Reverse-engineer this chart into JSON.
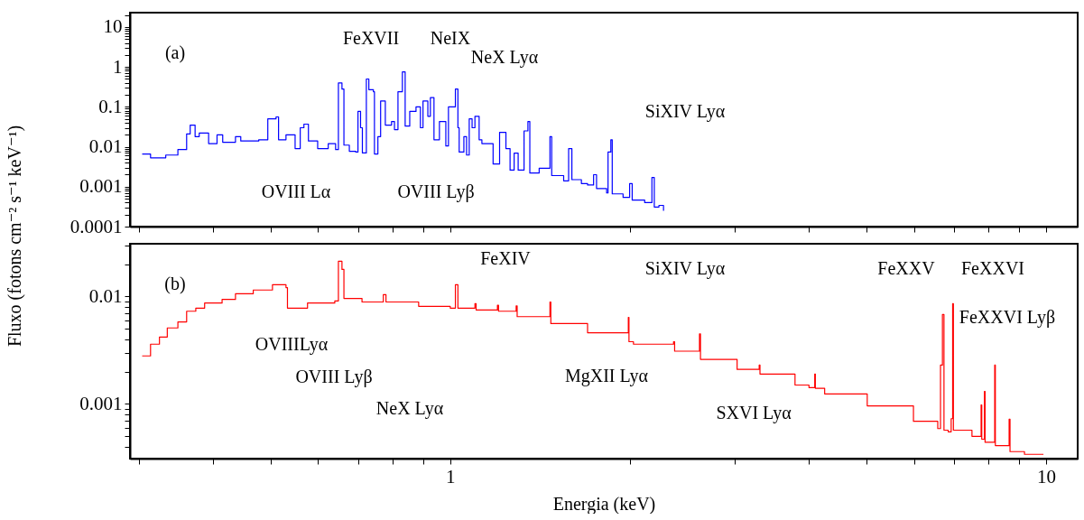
{
  "chart_data": [
    {
      "type": "step",
      "ylabel": "Fluxo (fotons cm⁻² s⁻¹ keV⁻¹)",
      "log": "xy",
      "tick_labels": "y",
      "xlim": [
        0.29,
        11.3
      ],
      "ylim": [
        0.0001,
        23
      ],
      "xticks": [
        {
          "value": 0.3,
          "label": null
        },
        {
          "value": 0.4,
          "label": null
        },
        {
          "value": 0.5,
          "label": null
        },
        {
          "value": 0.6,
          "label": null
        },
        {
          "value": 0.7,
          "label": null
        },
        {
          "value": 0.8,
          "label": null
        },
        {
          "value": 0.9,
          "label": null
        },
        {
          "value": 1,
          "label": null
        },
        {
          "value": 2,
          "label": null
        },
        {
          "value": 3,
          "label": null
        },
        {
          "value": 4,
          "label": null
        },
        {
          "value": 5,
          "label": null
        },
        {
          "value": 6,
          "label": null
        },
        {
          "value": 7,
          "label": null
        },
        {
          "value": 8,
          "label": null
        },
        {
          "value": 9,
          "label": null
        },
        {
          "value": 10,
          "label": null
        }
      ],
      "yticks": [
        0.0001,
        {
          "value": 0.0002,
          "label": null
        },
        {
          "value": 0.0003,
          "label": null
        },
        {
          "value": 0.0004,
          "label": null
        },
        {
          "value": 0.0005,
          "label": null
        },
        {
          "value": 0.0006,
          "label": null
        },
        {
          "value": 0.0007,
          "label": null
        },
        {
          "value": 0.0008,
          "label": null
        },
        {
          "value": 0.0009,
          "label": null
        },
        0.001,
        {
          "value": 0.002,
          "label": null
        },
        {
          "value": 0.003,
          "label": null
        },
        {
          "value": 0.004,
          "label": null
        },
        {
          "value": 0.005,
          "label": null
        },
        {
          "value": 0.006,
          "label": null
        },
        {
          "value": 0.007,
          "label": null
        },
        {
          "value": 0.008,
          "label": null
        },
        {
          "value": 0.009,
          "label": null
        },
        0.01,
        {
          "value": 0.02,
          "label": null
        },
        {
          "value": 0.03,
          "label": null
        },
        {
          "value": 0.04,
          "label": null
        },
        {
          "value": 0.05,
          "label": null
        },
        {
          "value": 0.06,
          "label": null
        },
        {
          "value": 0.07,
          "label": null
        },
        {
          "value": 0.08,
          "label": null
        },
        {
          "value": 0.09,
          "label": null
        },
        0.1,
        {
          "value": 0.2,
          "label": null
        },
        {
          "value": 0.3,
          "label": null
        },
        {
          "value": 0.4,
          "label": null
        },
        {
          "value": 0.5,
          "label": null
        },
        {
          "value": 0.6,
          "label": null
        },
        {
          "value": 0.7,
          "label": null
        },
        {
          "value": 0.8,
          "label": null
        },
        {
          "value": 0.9,
          "label": null
        },
        1,
        {
          "value": 2,
          "label": null
        },
        {
          "value": 3,
          "label": null
        },
        {
          "value": 4,
          "label": null
        },
        {
          "value": 5,
          "label": null
        },
        {
          "value": 6,
          "label": null
        },
        {
          "value": 7,
          "label": null
        },
        {
          "value": 8,
          "label": null
        },
        {
          "value": 9,
          "label": null
        },
        10,
        {
          "value": 20,
          "label": null
        }
      ],
      "series": [
        {
          "color": "#0000ff",
          "x": [
            0.304,
            0.314,
            0.333,
            0.349,
            0.361,
            0.366,
            0.373,
            0.379,
            0.393,
            0.406,
            0.415,
            0.436,
            0.445,
            0.477,
            0.494,
            0.51,
            0.515,
            0.53,
            0.549,
            0.56,
            0.568,
            0.578,
            0.599,
            0.624,
            0.642,
            0.649,
            0.658,
            0.663,
            0.677,
            0.694,
            0.7,
            0.707,
            0.712,
            0.723,
            0.73,
            0.743,
            0.746,
            0.756,
            0.764,
            0.778,
            0.797,
            0.806,
            0.817,
            0.831,
            0.84,
            0.855,
            0.876,
            0.891,
            0.9,
            0.917,
            0.926,
            0.939,
            0.959,
            0.983,
            0.993,
            1.01,
            1.02,
            1.03,
            1.035,
            1.054,
            1.065,
            1.076,
            1.088,
            1.1,
            1.118,
            1.13,
            1.18,
            1.21,
            1.24,
            1.26,
            1.28,
            1.3,
            1.33,
            1.35,
            1.36,
            1.41,
            1.47,
            1.48,
            1.55,
            1.58,
            1.6,
            1.66,
            1.7,
            1.74,
            1.76,
            1.83,
            1.84,
            1.86,
            1.87,
            1.95,
            2.0,
            2.02,
            2.12,
            2.18,
            2.2,
            2.24,
            2.28
          ],
          "values": [
            0.0066,
            0.0053,
            0.0062,
            0.0085,
            0.021,
            0.035,
            0.018,
            0.022,
            0.012,
            0.02,
            0.013,
            0.018,
            0.014,
            0.015,
            0.05,
            0.056,
            0.015,
            0.02,
            0.009,
            0.03,
            0.037,
            0.014,
            0.009,
            0.012,
            0.0085,
            0.4,
            0.28,
            0.011,
            0.0077,
            0.0074,
            0.077,
            0.03,
            0.007,
            0.5,
            0.27,
            0.24,
            0.0066,
            0.018,
            0.14,
            0.035,
            0.043,
            0.027,
            0.24,
            0.75,
            0.033,
            0.077,
            0.1,
            0.03,
            0.14,
            0.058,
            0.17,
            0.015,
            0.043,
            0.0105,
            0.1,
            0.1,
            0.28,
            0.03,
            0.0074,
            0.018,
            0.0062,
            0.05,
            0.03,
            0.058,
            0.015,
            0.012,
            0.0037,
            0.023,
            0.009,
            0.0026,
            0.0069,
            0.0026,
            0.025,
            0.043,
            0.0022,
            0.0029,
            0.018,
            0.0019,
            0.0014,
            0.009,
            0.0015,
            0.0012,
            0.0011,
            0.002,
            0.0009,
            0.0007,
            0.0074,
            0.015,
            0.00066,
            0.00054,
            0.0012,
            0.00046,
            0.0004,
            0.0017,
            0.00031,
            0.00034,
            0.00025
          ]
        }
      ],
      "annotations": [
        "(a)",
        "FeXVII",
        "NeIX",
        "NeX Lyα",
        "SiXIV Lyα",
        "OVIII Lα",
        "OVIII Lyβ"
      ]
    },
    {
      "type": "step",
      "xlabel": "Energia (keV)",
      "log": "xy",
      "xlim": [
        0.29,
        11.3
      ],
      "ylim": [
        0.00031,
        0.031
      ],
      "xticks": [
        {
          "value": 0.3,
          "label": null
        },
        {
          "value": 0.4,
          "label": null
        },
        {
          "value": 0.5,
          "label": null
        },
        {
          "value": 0.6,
          "label": null
        },
        {
          "value": 0.7,
          "label": null
        },
        {
          "value": 0.8,
          "label": null
        },
        {
          "value": 0.9,
          "label": null
        },
        1,
        {
          "value": 2,
          "label": null
        },
        {
          "value": 3,
          "label": null
        },
        {
          "value": 4,
          "label": null
        },
        {
          "value": 5,
          "label": null
        },
        {
          "value": 6,
          "label": null
        },
        {
          "value": 7,
          "label": null
        },
        {
          "value": 8,
          "label": null
        },
        {
          "value": 9,
          "label": null
        },
        10
      ],
      "yticks": [
        {
          "value": 0.0004,
          "label": null
        },
        {
          "value": 0.0005,
          "label": null
        },
        {
          "value": 0.0006,
          "label": null
        },
        {
          "value": 0.0007,
          "label": null
        },
        {
          "value": 0.0008,
          "label": null
        },
        {
          "value": 0.0009,
          "label": null
        },
        0.001,
        {
          "value": 0.002,
          "label": null
        },
        {
          "value": 0.003,
          "label": null
        },
        {
          "value": 0.004,
          "label": null
        },
        {
          "value": 0.005,
          "label": null
        },
        {
          "value": 0.006,
          "label": null
        },
        {
          "value": 0.007,
          "label": null
        },
        {
          "value": 0.008,
          "label": null
        },
        {
          "value": 0.009,
          "label": null
        },
        0.01,
        {
          "value": 0.02,
          "label": null
        },
        {
          "value": 0.03,
          "label": null
        }
      ],
      "series": [
        {
          "color": "#ff0000",
          "x": [
            0.304,
            0.314,
            0.325,
            0.335,
            0.349,
            0.361,
            0.374,
            0.387,
            0.414,
            0.436,
            0.467,
            0.503,
            0.53,
            0.533,
            0.576,
            0.64,
            0.649,
            0.658,
            0.663,
            0.711,
            0.772,
            0.78,
            0.885,
            1.0,
            1.02,
            1.03,
            1.1,
            1.105,
            1.2,
            1.205,
            1.29,
            1.295,
            1.47,
            1.475,
            1.7,
            1.99,
            1.995,
            2.03,
            2.37,
            2.38,
            2.62,
            2.63,
            3.03,
            3.3,
            3.31,
            3.79,
            4.0,
            4.09,
            4.1,
            4.25,
            5.01,
            5.99,
            6.58,
            6.65,
            6.7,
            6.74,
            6.85,
            6.93,
            6.97,
            6.99,
            7.51,
            7.78,
            7.8,
            7.88,
            7.9,
            8.2,
            8.22,
            8.67,
            8.7,
            9.2,
            9.9
          ],
          "values": [
            0.0028,
            0.0036,
            0.0042,
            0.0051,
            0.0058,
            0.0073,
            0.0078,
            0.0087,
            0.0094,
            0.0106,
            0.0115,
            0.0129,
            0.0121,
            0.0078,
            0.0087,
            0.0091,
            0.0213,
            0.0179,
            0.0096,
            0.0089,
            0.0104,
            0.0089,
            0.0081,
            0.0078,
            0.0129,
            0.0078,
            0.0086,
            0.0075,
            0.0083,
            0.0073,
            0.0082,
            0.0065,
            0.0089,
            0.0056,
            0.0046,
            0.0064,
            0.0038,
            0.0036,
            0.0038,
            0.0031,
            0.0045,
            0.0026,
            0.0021,
            0.0023,
            0.0019,
            0.0015,
            0.00142,
            0.0019,
            0.0014,
            0.00124,
            0.00096,
            0.00069,
            0.00059,
            0.0023,
            0.0068,
            0.00057,
            0.00055,
            0.00073,
            0.0086,
            0.00057,
            0.0005,
            0.00098,
            0.00047,
            0.00131,
            0.00044,
            0.0023,
            0.00041,
            0.00072,
            0.00036,
            0.00034,
            0.00034
          ]
        }
      ],
      "annotations": [
        "(b)",
        "FeXIV",
        "SiXIV Lyα",
        "FeXXV",
        "FeXXVI",
        "FeXXVI Lyβ",
        "OVIIILyα",
        "OVIII Lyβ",
        "NeX Lyα",
        "MgXII Lyα",
        "SXVI Lyα"
      ]
    }
  ]
}
